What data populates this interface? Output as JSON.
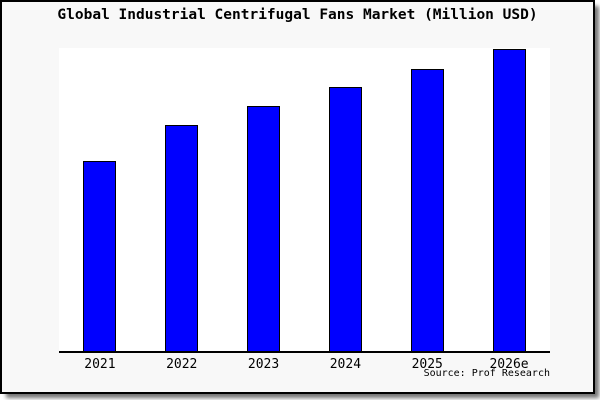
{
  "header": {
    "title": "Global Industrial Centrifugal Fans Market (Million USD)"
  },
  "footer": {
    "source": "Source: Prof Research"
  },
  "colors": {
    "bar_fill": "#0000ff",
    "bar_border": "#000000",
    "plot_background": "#ffffff",
    "canvas_background": "#f8f8f8",
    "frame_border": "#000000"
  },
  "chart_data": {
    "type": "bar",
    "title": "Global Industrial Centrifugal Fans Market (Million USD)",
    "categories": [
      "2021",
      "2022",
      "2023",
      "2024",
      "2025",
      "2026e"
    ],
    "values": [
      190,
      226,
      245,
      264,
      282,
      302
    ],
    "value_unit": "relative bar height in px (no numeric y-axis shown on chart)",
    "xlabel": "",
    "ylabel": "",
    "ylim": [
      0,
      303
    ],
    "y_axis_visible": false,
    "grid": false,
    "legend": false,
    "bar_color": "#0000ff",
    "bar_border_color": "#000000"
  }
}
